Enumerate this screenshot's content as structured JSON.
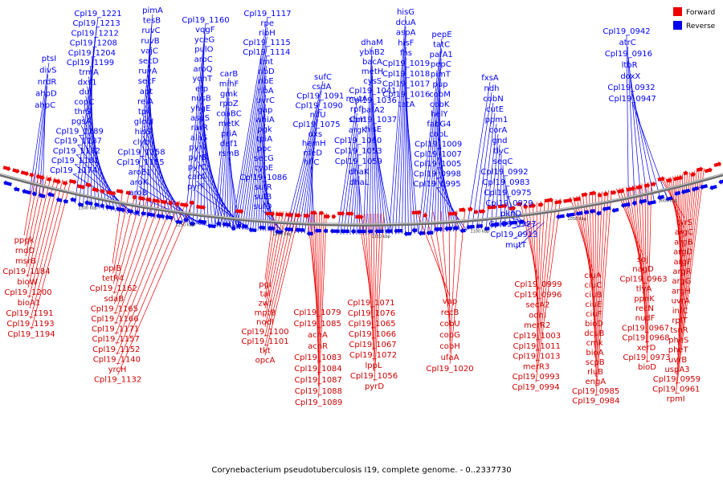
{
  "title": "Corynebacterium pseudotuberculosis I19, complete genome. - 0..2337730",
  "legend": {
    "items": [
      {
        "label": "Forward",
        "color": "#ee0000"
      },
      {
        "label": "Reverse",
        "color": "#0000ee"
      }
    ]
  },
  "colors": {
    "forward": "#ee0000",
    "reverse": "#0000ee",
    "backbone": "#707070"
  },
  "ticks": [
    "1300 kbp",
    "1250 kbp",
    "1200 kbp",
    "1150 kbp",
    "1100 kbp",
    "1050 kbp",
    "1000 kbp"
  ],
  "reverse_labels": [
    "ptsI",
    "divS",
    "nrdR",
    "ahpD",
    "ahpC",
    "Cpl19_1221",
    "Cpl19_1213",
    "Cpl19_1212",
    "Cpl19_1208",
    "Cpl19_1204",
    "Cpl19_1199",
    "trmA",
    "dxs1",
    "dut",
    "copC",
    "thrS",
    "pgsA",
    "Cpl19_1189",
    "Cpl19_1187",
    "Cpl19_1182",
    "Cpl19_1181",
    "Cpl19_1174",
    "pimA",
    "tesB",
    "ruvC",
    "ruvB",
    "vajC",
    "secD",
    "ruvA",
    "secF",
    "apt",
    "relA",
    "tpx",
    "globI",
    "hisS",
    "clybl",
    "Cpl19_1158",
    "Cpl19_1155",
    "aroE1",
    "aroK",
    "aroB",
    "Cpl19_1160",
    "vqgF",
    "yceG",
    "pulO",
    "aroC",
    "aroQ",
    "yqhT",
    "efp",
    "nusB",
    "yhgE",
    "aspS",
    "rarR",
    "alaS",
    "pyrR",
    "pyrB",
    "pyrC",
    "carA",
    "pyrF",
    "carB",
    "mihF",
    "gmk",
    "rpoZ",
    "coaBC",
    "metK",
    "priA",
    "def1",
    "rsmB",
    "Cpl19_1117",
    "rpe",
    "ribH",
    "Cpl19_1115",
    "Cpl19_1114",
    "fmt",
    "ribD",
    "ribE",
    "ribA",
    "uvrC",
    "gap",
    "whiA",
    "pgk",
    "tpiA",
    "ppc",
    "secG",
    "cyoE",
    "Cpl19_1086",
    "sufR",
    "sufB",
    "sufD",
    "sufC",
    "csdA",
    "Cpl19_1091",
    "Cpl19_1090",
    "nifU",
    "Cpl19_1075",
    "dxs",
    "hemH",
    "nfeD",
    "hflC",
    "mutA",
    "rpfI",
    "sbm",
    "argK",
    "Cpl19_1060",
    "Cpl19_1053",
    "Cpl19_1059",
    "dhaK",
    "dhaL",
    "dhaM",
    "ybhB2",
    "bacA",
    "metH",
    "cysS",
    "Cpl19_1041",
    "Cpl19_1036",
    "pafA2",
    "Cpl19_1037",
    "hisE",
    "hisG",
    "dcuA",
    "aspA",
    "hisF",
    "fhs",
    "Cpl19_1019",
    "Cpl19_1018",
    "Cpl19_1017",
    "Cpl19_1016",
    "tatA",
    "pepE",
    "tatC",
    "pafA1",
    "pepC",
    "pimT",
    "pup",
    "cobM",
    "cobK",
    "helY",
    "fabG4",
    "cobL",
    "Cpl19_1009",
    "Cpl19_1007",
    "Cpl19_1005",
    "Cpl19_0998",
    "Cpl19_0995",
    "fxsA",
    "ndh",
    "cobN",
    "cutE",
    "ppm1",
    "corA",
    "gnd",
    "tlyC",
    "seqC",
    "Cpl19_0992",
    "Cpl19_0983",
    "Cpl19_0975",
    "Cpl19_0929",
    "pknD",
    "Cpl19_0927",
    "Cpl19_0913",
    "mutT",
    "Cpl19_0942",
    "atrC",
    "Cpl19_0916",
    "ltbR",
    "doxX",
    "Cpl19_0932",
    "Cpl19_0947"
  ],
  "forward_labels": [
    "ppgk",
    "rndD",
    "msrB",
    "Cpl19_1184",
    "bioW",
    "Cpl19_1200",
    "bioA1",
    "Cpl19_1191",
    "Cpl19_1193",
    "Cpl19_1194",
    "ppiB",
    "tetR4",
    "Cpl19_1162",
    "sdaB",
    "Cpl19_1165",
    "Cpl19_1166",
    "Cpl19_1171",
    "Cpl19_1157",
    "Cpl19_1152",
    "Cpl19_1140",
    "yrcH",
    "Cpl19_1132",
    "pgl",
    "tal",
    "zwf",
    "mptB",
    "nodI",
    "Cpl19_1100",
    "Cpl19_1101",
    "tkt",
    "opcA",
    "Cpl19_1079",
    "Cpl19_1085",
    "acnA",
    "acnR",
    "Cpl19_1083",
    "Cpl19_1084",
    "Cpl19_1087",
    "Cpl19_1088",
    "Cpl19_1089",
    "Cpl19_1071",
    "Cpl19_1076",
    "Cpl19_1065",
    "Cpl19_1066",
    "Cpl19_1067",
    "Cpl19_1072",
    "lppL",
    "Cpl19_1056",
    "pyrD",
    "vap",
    "recB",
    "cobU",
    "cobG",
    "cobH",
    "ufaA",
    "Cpl19_1020",
    "Cpl19_0999",
    "Cpl19_0996",
    "secA2",
    "odhI",
    "merR2",
    "Cpl19_1003",
    "Cpl19_1011",
    "Cpl19_1013",
    "merR3",
    "Cpl19_0993",
    "Cpl19_0994",
    "ciuA",
    "ciuC",
    "ciuB",
    "ciuE",
    "ciuF",
    "bioD",
    "dcuB",
    "cmk",
    "bioA",
    "scpB",
    "rluB",
    "engA",
    "Cpl19_0985",
    "Cpl19_0984",
    "soj",
    "nagD",
    "Cpl19_0963",
    "tlyA",
    "ppnK",
    "recN",
    "nudF",
    "Cpl19_0967",
    "Cpl19_0968",
    "xerD",
    "Cpl19_0973",
    "bioD",
    "tyrS",
    "argC",
    "argB",
    "argD",
    "argF",
    "argR",
    "argG",
    "argH",
    "uvrA",
    "infC",
    "rplT",
    "tsnR",
    "pheS",
    "pheT",
    "uvrB",
    "uspA3",
    "Cpl19_0959",
    "Cpl19_0961",
    "rpmI"
  ]
}
